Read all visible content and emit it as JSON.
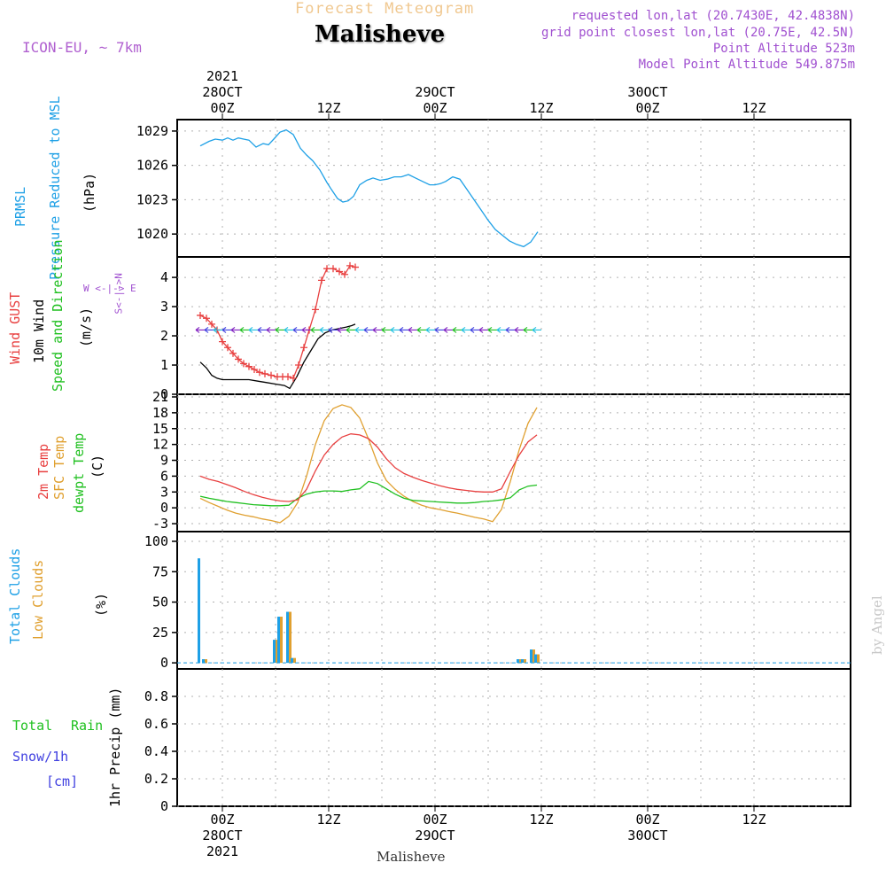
{
  "header": {
    "forecast_title": "Forecast Meteogram",
    "station": "Malisheve",
    "model": "ICON-EU, ~ 7km",
    "requested": "requested lon,lat (20.7430E, 42.4838N)",
    "grid_point": "grid point closest lon,lat (20.75E, 42.5N)",
    "point_altitude": "Point Altitude 523m",
    "model_altitude": "Model Point Altitude 549.875m",
    "credit": "by Angel",
    "footer_station": "Malisheve"
  },
  "time_axis": {
    "top_labels": [
      {
        "h": 0,
        "lines": [
          "2021",
          "28OCT",
          "00Z"
        ]
      },
      {
        "h": 12,
        "lines": [
          "12Z"
        ]
      },
      {
        "h": 24,
        "lines": [
          "29OCT",
          "00Z"
        ]
      },
      {
        "h": 36,
        "lines": [
          "12Z"
        ]
      },
      {
        "h": 48,
        "lines": [
          "30OCT",
          "00Z"
        ]
      },
      {
        "h": 60,
        "lines": [
          "12Z"
        ]
      }
    ],
    "bottom_labels": [
      {
        "h": 0,
        "lines": [
          "00Z",
          "28OCT",
          "2021"
        ]
      },
      {
        "h": 12,
        "lines": [
          "12Z"
        ]
      },
      {
        "h": 24,
        "lines": [
          "00Z",
          "29OCT"
        ]
      },
      {
        "h": 36,
        "lines": [
          "12Z"
        ]
      },
      {
        "h": 48,
        "lines": [
          "00Z",
          "30OCT"
        ]
      },
      {
        "h": 60,
        "lines": [
          "12Z"
        ]
      }
    ],
    "range_hours": [
      -2.6,
      35.6
    ]
  },
  "labels": {
    "pressure": {
      "a": "PRMSL",
      "b": "Pressure Reduced to MSL",
      "unit": "(hPa)"
    },
    "wind": {
      "a": "Wind GUST",
      "b": "10m Wind",
      "c": "Speed and Direction",
      "unit": "(m/s)",
      "compass": "W <-|-> E",
      "compass_ns": "S<-|->N"
    },
    "temp": {
      "a": "2m Temp",
      "b": "SFC Temp",
      "c": "dewpt Temp",
      "unit": "(C)"
    },
    "clouds": {
      "a": "Total Clouds",
      "b": "Low Clouds",
      "unit": "(%)"
    },
    "precip": {
      "a": "Total",
      "a2": "Rain",
      "b": "Snow/1h",
      "c": "[cm]",
      "unit": "1hr Precip (mm)"
    }
  },
  "colors": {
    "pressure": "#1ea0e6",
    "gust": "#e84040",
    "wind": "#000000",
    "temp2m": "#e84040",
    "sfc": "#e0a030",
    "dewpt": "#20c020",
    "total_clouds": "#1ea0e6",
    "low_clouds": "#e0a030",
    "rain": "#20c020",
    "snow": "#4040e0",
    "purple": "#a050d0"
  },
  "chart_data": [
    {
      "type": "line",
      "title": "PRMSL Pressure Reduced to MSL",
      "ylabel": "(hPa)",
      "ylim": [
        1018,
        1030
      ],
      "yticks": [
        1020,
        1023,
        1026,
        1029
      ],
      "series": [
        {
          "name": "PRMSL",
          "x": [
            -2.5,
            -1.5,
            -0.8,
            0,
            0.6,
            1.2,
            1.8,
            2.4,
            3,
            3.8,
            4.6,
            5.2,
            5.8,
            6.5,
            7.2,
            8,
            8.8,
            9.5,
            10.2,
            11,
            11.8,
            12.3,
            13,
            13.6,
            14.2,
            14.8,
            15.5,
            16.3,
            17,
            17.8,
            18.6,
            19.4,
            20.2,
            21,
            21.8,
            22.6,
            23.4,
            24,
            24.6,
            25.2,
            26,
            26.8,
            27.6,
            28.4,
            29.2,
            30,
            30.8,
            31.6,
            32.4,
            33.2,
            34,
            34.8,
            35.6
          ],
          "y": [
            1027.7,
            1028.1,
            1028.3,
            1028.2,
            1028.4,
            1028.2,
            1028.4,
            1028.3,
            1028.2,
            1027.6,
            1027.9,
            1027.8,
            1028.3,
            1028.9,
            1029.1,
            1028.7,
            1027.5,
            1026.9,
            1026.4,
            1025.6,
            1024.5,
            1023.9,
            1023.1,
            1022.8,
            1022.9,
            1023.3,
            1024.3,
            1024.7,
            1024.9,
            1024.7,
            1024.8,
            1025.0,
            1025.0,
            1025.2,
            1024.9,
            1024.6,
            1024.3,
            1024.3,
            1024.4,
            1024.6,
            1025.0,
            1024.8,
            1023.9,
            1023.0,
            1022.1,
            1021.2,
            1020.4,
            1019.9,
            1019.4,
            1019.1,
            1018.9,
            1019.3,
            1020.2
          ]
        }
      ]
    },
    {
      "type": "line",
      "title": "Wind GUST / 10m Wind Speed and Direction",
      "ylabel": "(m/s)",
      "ylim": [
        0,
        4.7
      ],
      "yticks": [
        0,
        1,
        2,
        3,
        4
      ],
      "series": [
        {
          "name": "Wind GUST",
          "x": [
            -2.5,
            -1.8,
            -1.2,
            -0.6,
            0,
            0.6,
            1.2,
            1.8,
            2.4,
            3,
            3.6,
            4.2,
            4.8,
            5.5,
            6.2,
            6.8,
            7.4,
            8,
            8.6,
            9.2,
            9.8,
            10.5,
            11.2,
            11.8,
            12.5,
            13.2,
            13.8,
            14.4,
            15
          ],
          "y": [
            2.7,
            2.6,
            2.4,
            2.2,
            1.8,
            1.6,
            1.4,
            1.2,
            1.05,
            0.95,
            0.85,
            0.75,
            0.7,
            0.65,
            0.6,
            0.6,
            0.6,
            0.55,
            1.0,
            1.6,
            2.2,
            2.9,
            3.9,
            4.3,
            4.3,
            4.2,
            4.1,
            4.4,
            4.35
          ]
        },
        {
          "name": "10m Wind",
          "x": [
            -2.5,
            -1.8,
            -1.2,
            -0.6,
            0,
            1,
            2,
            3,
            4,
            5,
            6,
            7,
            7.6,
            8.4,
            9.2,
            10,
            10.8,
            11.6,
            12.4,
            13.2,
            14,
            14.6,
            15
          ],
          "y": [
            1.1,
            0.9,
            0.65,
            0.55,
            0.5,
            0.5,
            0.5,
            0.5,
            0.45,
            0.4,
            0.35,
            0.3,
            0.2,
            0.6,
            1.1,
            1.5,
            1.9,
            2.1,
            2.2,
            2.25,
            2.3,
            2.35,
            2.4
          ]
        }
      ]
    },
    {
      "type": "line",
      "title": "2m Temp / SFC Temp / dewpt Temp",
      "ylabel": "(C)",
      "ylim": [
        -4.5,
        21.5
      ],
      "yticks": [
        -3,
        0,
        3,
        6,
        9,
        12,
        15,
        18,
        21
      ],
      "series": [
        {
          "name": "2m Temp",
          "x": [
            -2.5,
            -1.5,
            -0.5,
            0.5,
            1.5,
            2.5,
            3.5,
            4.5,
            5.5,
            6.5,
            7.5,
            8.5,
            9.5,
            10.5,
            11.5,
            12.5,
            13.5,
            14.5,
            15.5,
            16.5,
            17.5,
            18.5,
            19.5,
            20.5,
            21.5,
            22.5,
            23.5,
            24.5,
            25.5,
            26.5,
            27.5,
            28.5,
            29.5,
            30.5,
            31.5,
            32.5,
            33.5,
            34.5,
            35.5
          ],
          "y": [
            6,
            5.4,
            5,
            4.4,
            3.8,
            3.1,
            2.5,
            2,
            1.6,
            1.3,
            1.2,
            1.5,
            3.5,
            7,
            10,
            12,
            13.4,
            14,
            13.8,
            13.1,
            11.5,
            9.3,
            7.6,
            6.5,
            5.8,
            5.2,
            4.7,
            4.2,
            3.8,
            3.5,
            3.3,
            3.1,
            3,
            3,
            3.6,
            6.9,
            10,
            12.5,
            13.8
          ]
        },
        {
          "name": "SFC Temp",
          "x": [
            -2.5,
            -1.5,
            -0.5,
            0.5,
            1.5,
            2.5,
            3.5,
            4.5,
            5.5,
            6.5,
            7.5,
            8.5,
            9.5,
            10.5,
            11.5,
            12.5,
            13.5,
            14.5,
            15.5,
            16.5,
            17.5,
            18.5,
            19.5,
            20.5,
            21.5,
            22.5,
            23.5,
            24.5,
            25.5,
            26.5,
            27.5,
            28.5,
            29.5,
            30.5,
            31.5,
            32.5,
            33.5,
            34.5,
            35.5
          ],
          "y": [
            1.8,
            1,
            0.3,
            -0.4,
            -1,
            -1.4,
            -1.7,
            -2.1,
            -2.4,
            -2.8,
            -1.6,
            1,
            6,
            12,
            16.5,
            18.8,
            19.5,
            19,
            17,
            13,
            8.5,
            5.2,
            3.5,
            2.2,
            1.2,
            0.5,
            0,
            -0.3,
            -0.7,
            -1,
            -1.4,
            -1.8,
            -2.1,
            -2.6,
            -0.3,
            5,
            11,
            16,
            19
          ]
        },
        {
          "name": "dewpt Temp",
          "x": [
            -2.5,
            -1.5,
            -0.5,
            0.5,
            1.5,
            2.5,
            3.5,
            4.5,
            5.5,
            6.5,
            7.5,
            8.5,
            9.5,
            10.5,
            11.5,
            12.5,
            13.5,
            14.5,
            15.5,
            16.5,
            17.5,
            18.5,
            19.5,
            20.5,
            21.5,
            22.5,
            23.5,
            24.5,
            25.5,
            26.5,
            27.5,
            28.5,
            29.5,
            30.5,
            31.5,
            32.5,
            33.5,
            34.5,
            35.5
          ],
          "y": [
            2.2,
            1.8,
            1.5,
            1.2,
            1,
            0.8,
            0.6,
            0.5,
            0.4,
            0.4,
            0.5,
            1.8,
            2.6,
            3,
            3.2,
            3.2,
            3.1,
            3.4,
            3.6,
            5,
            4.6,
            3.6,
            2.6,
            1.8,
            1.4,
            1.3,
            1.2,
            1.1,
            1,
            0.9,
            0.9,
            1,
            1.2,
            1.3,
            1.5,
            1.9,
            3.4,
            4.1,
            4.3
          ]
        }
      ]
    },
    {
      "type": "bar",
      "title": "Total Clouds / Low Clouds",
      "ylabel": "(%)",
      "ylim": [
        -5,
        108
      ],
      "yticks": [
        0,
        25,
        50,
        75,
        100
      ],
      "x": [
        -2.5,
        -2.0,
        3.5,
        4.0,
        4.5,
        5.0,
        5.5,
        6.0,
        6.5,
        7.5,
        8.0,
        32.5,
        33.0,
        33.5,
        34.0,
        34.5,
        35.0,
        35.5
      ],
      "series": [
        {
          "name": "Total Clouds",
          "values": [
            86,
            3,
            0,
            0,
            0,
            0,
            0,
            19,
            38,
            42,
            4,
            0,
            0,
            3,
            3,
            0,
            11,
            7
          ]
        },
        {
          "name": "Low Clouds",
          "values": [
            0,
            3,
            0,
            0,
            0,
            0,
            0,
            19,
            38,
            42,
            4,
            0,
            0,
            3,
            3,
            0,
            11,
            7
          ]
        }
      ]
    },
    {
      "type": "bar",
      "title": "1hr Precip",
      "ylabel": "1hr Precip (mm)",
      "ylim": [
        0,
        1.0
      ],
      "yticks": [
        0,
        0.2,
        0.4,
        0.6,
        0.8
      ],
      "series": [
        {
          "name": "Total Rain",
          "values": []
        },
        {
          "name": "Snow/1h",
          "values": []
        }
      ]
    }
  ]
}
